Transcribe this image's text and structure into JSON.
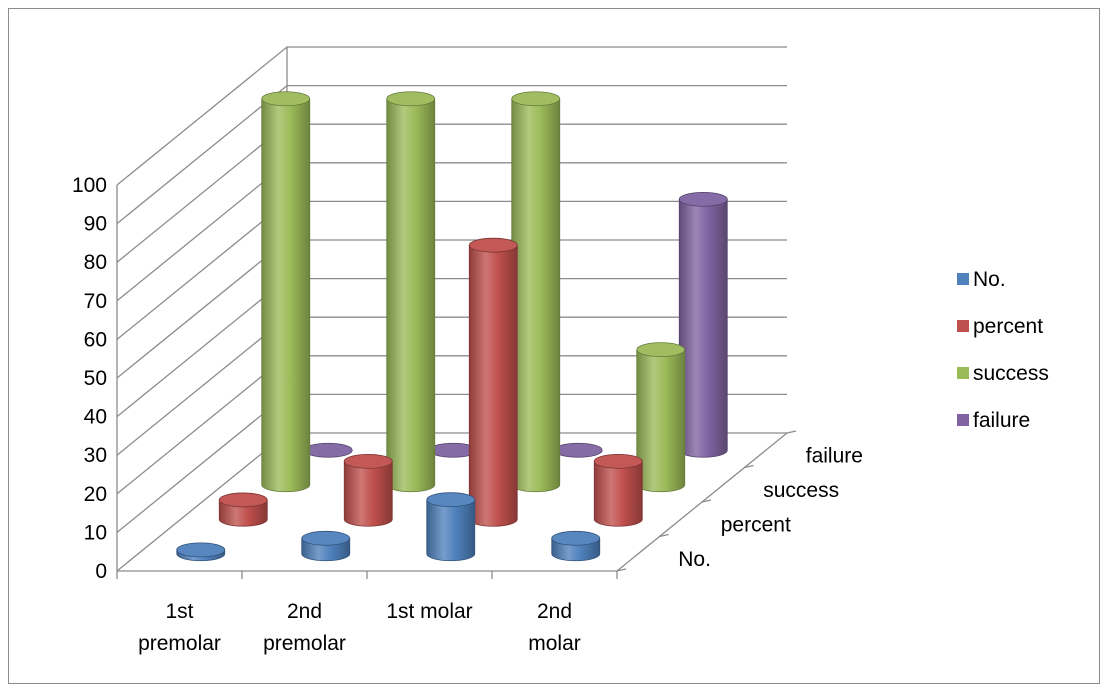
{
  "chart_data": {
    "type": "bar",
    "subtype": "3d-cylinder",
    "categories": [
      "1st premolar",
      "2nd premolar",
      "1st molar",
      "2nd molar"
    ],
    "series": [
      {
        "name": "No.",
        "color": "#4f81bd",
        "values": [
          1,
          4,
          14,
          4
        ]
      },
      {
        "name": "percent",
        "color": "#c0504d",
        "values": [
          5,
          15,
          71,
          15
        ]
      },
      {
        "name": "success",
        "color": "#9bbb59",
        "values": [
          100,
          100,
          100,
          35
        ]
      },
      {
        "name": "failure",
        "color": "#8064a2",
        "values": [
          0,
          0,
          0,
          65
        ]
      }
    ],
    "ylim": [
      0,
      100
    ],
    "yticks": [
      "0",
      "10",
      "20",
      "30",
      "40",
      "50",
      "60",
      "70",
      "80",
      "90",
      "100"
    ],
    "category_labels": [
      [
        "1st",
        "premolar"
      ],
      [
        "2nd",
        "premolar"
      ],
      [
        "1st molar"
      ],
      [
        "2nd",
        "molar"
      ]
    ],
    "depth_labels": [
      "No.",
      "percent",
      "success",
      "failure"
    ],
    "legend_position": "right",
    "grid": true
  }
}
